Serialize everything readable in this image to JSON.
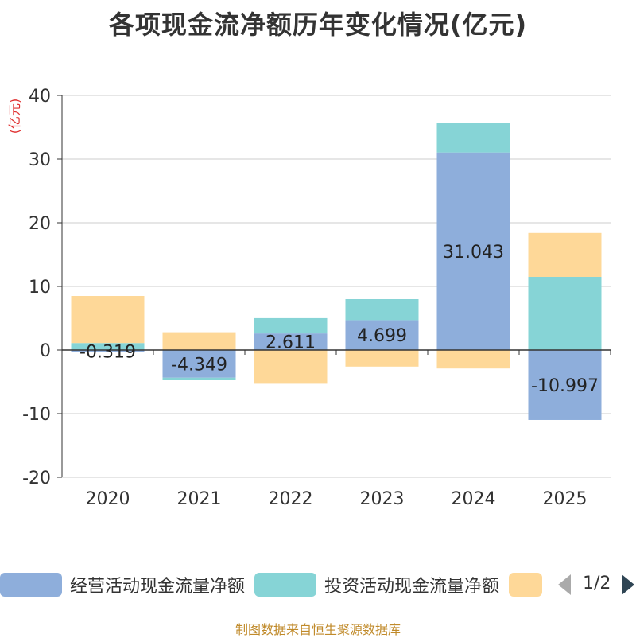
{
  "chart_data": {
    "type": "bar",
    "stacked": true,
    "title": "各项现金流净额历年变化情况(亿元)",
    "ylabel": "(亿元)",
    "categories": [
      "2020",
      "2021",
      "2022",
      "2023",
      "2024",
      "2025"
    ],
    "ylim": [
      -20,
      40
    ],
    "yticks": [
      -20,
      -10,
      0,
      10,
      20,
      30,
      40
    ],
    "grid": true,
    "series": [
      {
        "name": "经营活动现金流量净额",
        "color": "#8eaedb",
        "values": [
          -0.319,
          -4.349,
          2.611,
          4.699,
          31.043,
          -10.997
        ],
        "labels": [
          "-0.319",
          "-4.349",
          "2.611",
          "4.699",
          "31.043",
          "-10.997"
        ]
      },
      {
        "name": "投资活动现金流量净额",
        "color": "#86d4d6",
        "values": [
          1.1,
          -0.4,
          2.4,
          3.3,
          4.7,
          11.5
        ]
      },
      {
        "name": "",
        "color": "#fed898",
        "values": [
          7.4,
          2.8,
          -5.3,
          -2.6,
          -2.9,
          6.9
        ]
      }
    ]
  },
  "legend": {
    "items": [
      {
        "label": "经营活动现金流量净额",
        "color": "#8eaedb"
      },
      {
        "label": "投资活动现金流量净额",
        "color": "#86d4d6"
      },
      {
        "label": "",
        "color": "#fed898"
      }
    ],
    "page_label": "1/2",
    "prev_icon": "triangle-left-icon",
    "next_icon": "triangle-right-icon"
  },
  "footer": {
    "source": "制图数据来自恒生聚源数据库"
  }
}
